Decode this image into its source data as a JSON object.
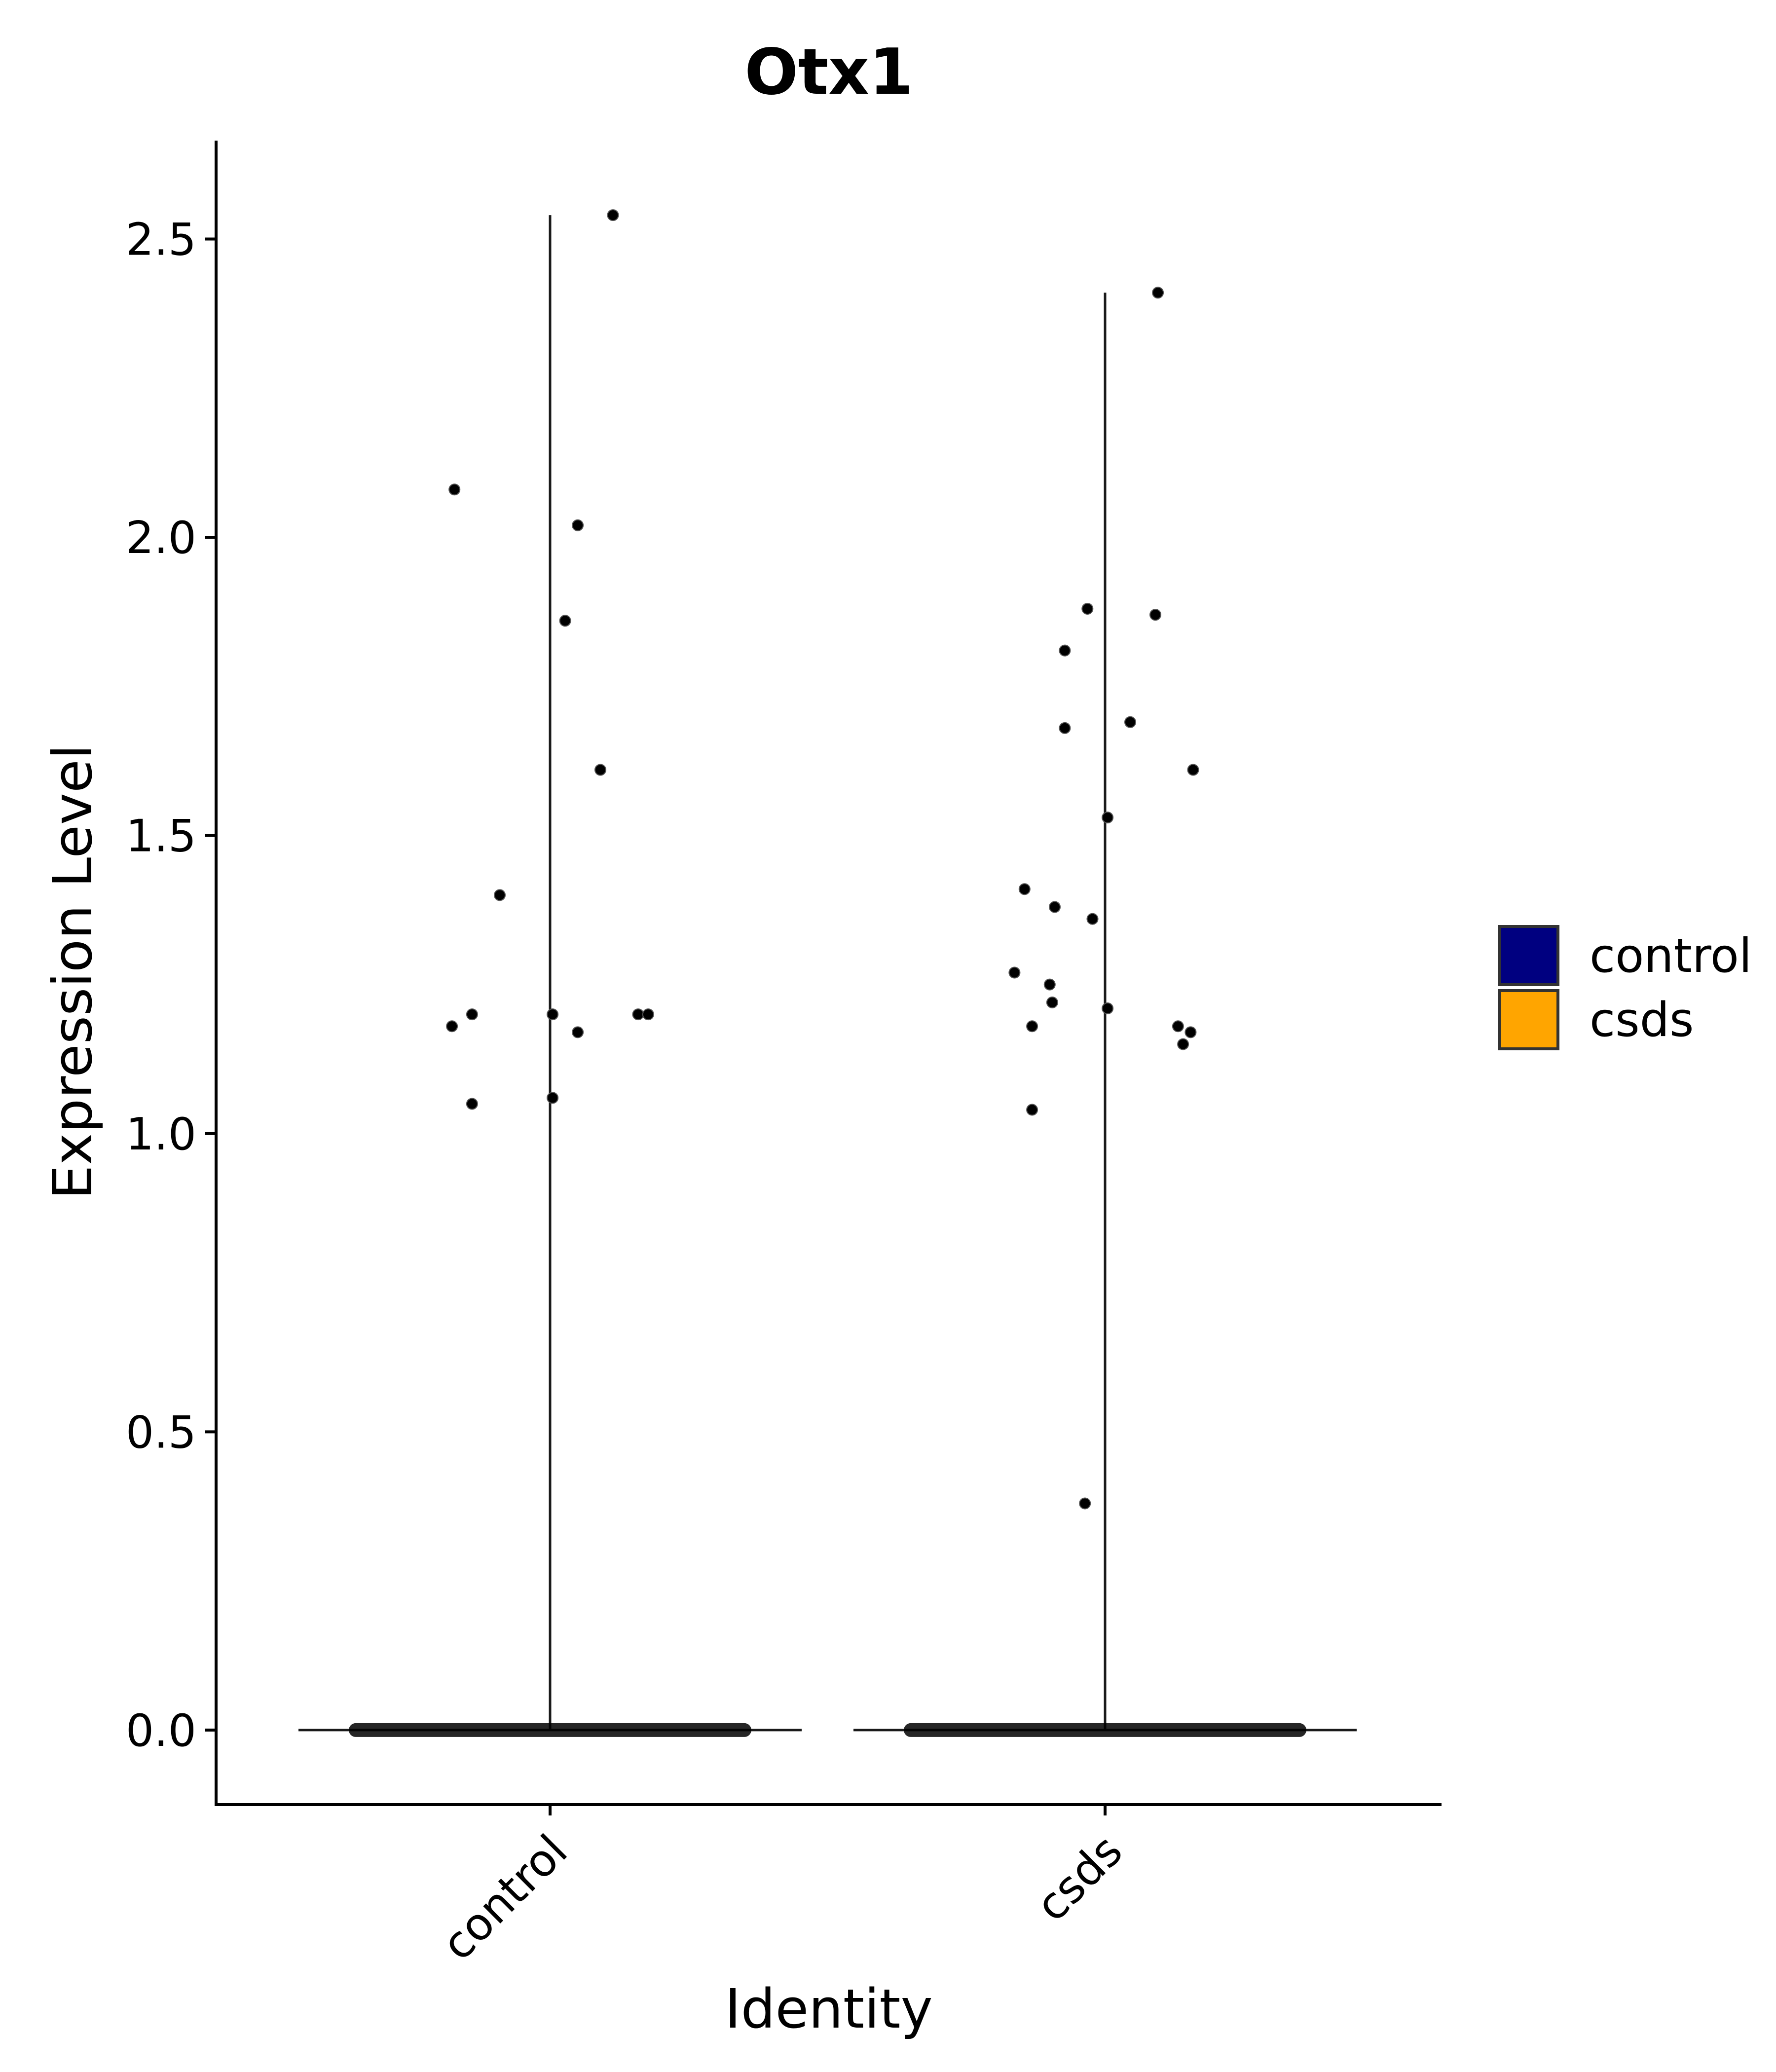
{
  "chart_data": {
    "type": "violin",
    "title": "Otx1",
    "xlabel": "Identity",
    "ylabel": "Expression Level",
    "categories": [
      "control",
      "csds"
    ],
    "ylim": [
      -0.125,
      2.665
    ],
    "yticks": [
      "0.0",
      "0.5",
      "1.0",
      "1.5",
      "2.0",
      "2.5"
    ],
    "ytick_values": [
      0.0,
      0.5,
      1.0,
      1.5,
      2.0,
      2.5
    ],
    "grid": false,
    "legend": {
      "position": "right",
      "entries": [
        {
          "label": "control",
          "color": "#000080"
        },
        {
          "label": "csds",
          "color": "#FFA500"
        }
      ]
    },
    "series": [
      {
        "name": "control",
        "color": "#000080",
        "max": 2.54,
        "zero_jitter_range": [
          -0.4,
          0.4
        ],
        "points": [
          {
            "x": -0.39,
            "y": 1.18
          },
          {
            "x": -0.38,
            "y": 2.08
          },
          {
            "x": -0.31,
            "y": 1.2
          },
          {
            "x": -0.31,
            "y": 1.05
          },
          {
            "x": -0.2,
            "y": 1.4
          },
          {
            "x": 0.01,
            "y": 1.2
          },
          {
            "x": 0.01,
            "y": 1.06
          },
          {
            "x": 0.06,
            "y": 1.86
          },
          {
            "x": 0.11,
            "y": 2.02
          },
          {
            "x": 0.11,
            "y": 1.17
          },
          {
            "x": 0.2,
            "y": 1.61
          },
          {
            "x": 0.25,
            "y": 2.54
          },
          {
            "x": 0.35,
            "y": 1.2
          },
          {
            "x": 0.39,
            "y": 1.2
          }
        ]
      },
      {
        "name": "csds",
        "color": "#FFA500",
        "max": 2.41,
        "zero_jitter_range": [
          -0.4,
          0.4
        ],
        "points": [
          {
            "x": -0.36,
            "y": 1.27
          },
          {
            "x": -0.32,
            "y": 1.41
          },
          {
            "x": -0.29,
            "y": 1.18
          },
          {
            "x": -0.29,
            "y": 1.04
          },
          {
            "x": -0.22,
            "y": 1.25
          },
          {
            "x": -0.21,
            "y": 1.22
          },
          {
            "x": -0.2,
            "y": 1.38
          },
          {
            "x": -0.16,
            "y": 1.81
          },
          {
            "x": -0.16,
            "y": 1.68
          },
          {
            "x": -0.07,
            "y": 1.88
          },
          {
            "x": -0.08,
            "y": 0.38
          },
          {
            "x": -0.05,
            "y": 1.36
          },
          {
            "x": 0.01,
            "y": 1.53
          },
          {
            "x": 0.01,
            "y": 1.21
          },
          {
            "x": 0.1,
            "y": 1.69
          },
          {
            "x": 0.2,
            "y": 1.87
          },
          {
            "x": 0.21,
            "y": 2.41
          },
          {
            "x": 0.29,
            "y": 1.18
          },
          {
            "x": 0.31,
            "y": 1.15
          },
          {
            "x": 0.34,
            "y": 1.17
          },
          {
            "x": 0.35,
            "y": 1.61
          }
        ]
      }
    ]
  }
}
